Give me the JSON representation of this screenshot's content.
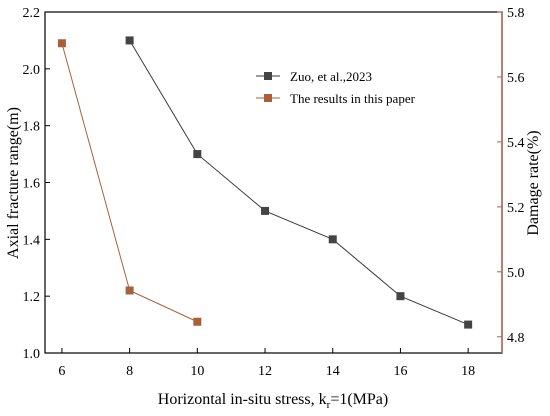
{
  "chart_data": {
    "type": "line",
    "xlabel_main": "Horizontal in-situ stress, k",
    "xlabel_sub": "r",
    "xlabel_tail": "=1(MPa)",
    "ylabel_left": "Axial fracture range(m)",
    "ylabel_right": "Damage rate(%)",
    "xlim": [
      5.5,
      19.0
    ],
    "ylim_left": [
      1.0,
      2.2
    ],
    "ylim_right": [
      4.75,
      5.8
    ],
    "x_ticks": [
      "6",
      "8",
      "10",
      "12",
      "14",
      "16",
      "18"
    ],
    "y_left_ticks": [
      "1.0",
      "1.2",
      "1.4",
      "1.6",
      "1.8",
      "2.0",
      "2.2"
    ],
    "y_right_ticks": [
      "4.8",
      "5.0",
      "5.2",
      "5.4",
      "5.6",
      "5.8"
    ],
    "series": [
      {
        "name": "Zuo, et al.,2023",
        "color": "#3a3a3a",
        "marker_color": "#444444",
        "axis": "left",
        "x": [
          8,
          10,
          12,
          14,
          16,
          18
        ],
        "y": [
          2.1,
          1.7,
          1.5,
          1.4,
          1.2,
          1.1
        ]
      },
      {
        "name": "The results in this paper",
        "color": "#a8603a",
        "marker_color": "#a8603a",
        "axis": "left",
        "x": [
          6,
          8,
          10
        ],
        "y": [
          2.09,
          1.22,
          1.11
        ]
      }
    ],
    "legend_position": "top-right",
    "right_axis_color": "#b0604a",
    "grid": false
  }
}
